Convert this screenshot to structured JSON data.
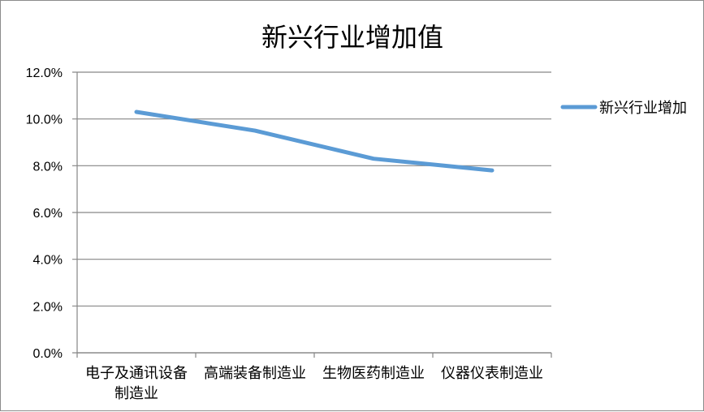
{
  "chart_data": {
    "type": "line",
    "title": "新兴行业增加值",
    "categories": [
      [
        "电子及通讯设备",
        "制造业"
      ],
      [
        "高端装备制造业"
      ],
      [
        "生物医药制造业"
      ],
      [
        "仪器仪表制造业"
      ]
    ],
    "series": [
      {
        "name": "新兴行业增加",
        "values": [
          10.3,
          9.5,
          8.3,
          7.8
        ]
      }
    ],
    "y_ticks": [
      "0.0%",
      "2.0%",
      "4.0%",
      "6.0%",
      "8.0%",
      "10.0%",
      "12.0%"
    ],
    "ylim": [
      0,
      12
    ],
    "y_unit": "%",
    "grid": true,
    "legend": "right",
    "colors": {
      "series": "#5b9bd5",
      "grid": "#868686",
      "axis": "#868686"
    }
  }
}
